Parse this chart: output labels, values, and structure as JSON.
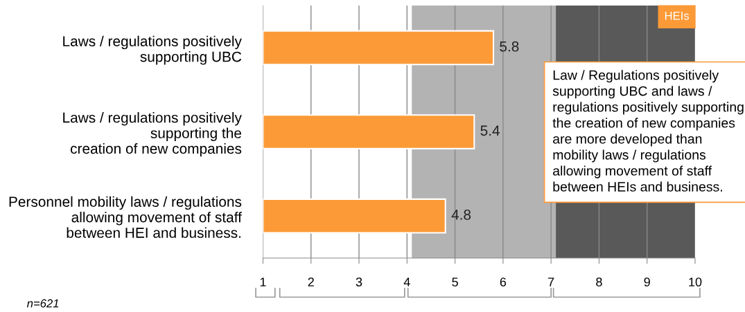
{
  "chart_data": {
    "type": "bar",
    "orientation": "horizontal",
    "categories": [
      "Laws / regulations positively\nsupporting UBC",
      "Laws / regulations positively\nsupporting the\ncreation of new companies",
      "Personnel mobility laws / regulations\nallowing movement of staff\nbetween HEI and business."
    ],
    "series": [
      {
        "name": "HEIs",
        "color": "#fd9a38",
        "values": [
          5.8,
          5.4,
          4.8
        ]
      }
    ],
    "xlim": [
      1,
      10
    ],
    "xticks": [
      1,
      2,
      3,
      4,
      5,
      6,
      7,
      8,
      9,
      10
    ],
    "grid": "x",
    "data_labels": true,
    "legend": "top right",
    "bands": [
      {
        "axis": "x",
        "from": 4.1,
        "to": 7.1,
        "color": "#b3b3b3"
      },
      {
        "axis": "x",
        "from": 7.1,
        "to": 10,
        "color": "#595959"
      }
    ],
    "annotations": [
      "Law / Regulations positively\nsupporting UBC and laws /\nregulations positively supporting\nthe creation of new companies\nare more developed than\nmobility laws / regulations\nallowing movement of staff\nbetween HEIs and business.",
      "n=621"
    ]
  }
}
